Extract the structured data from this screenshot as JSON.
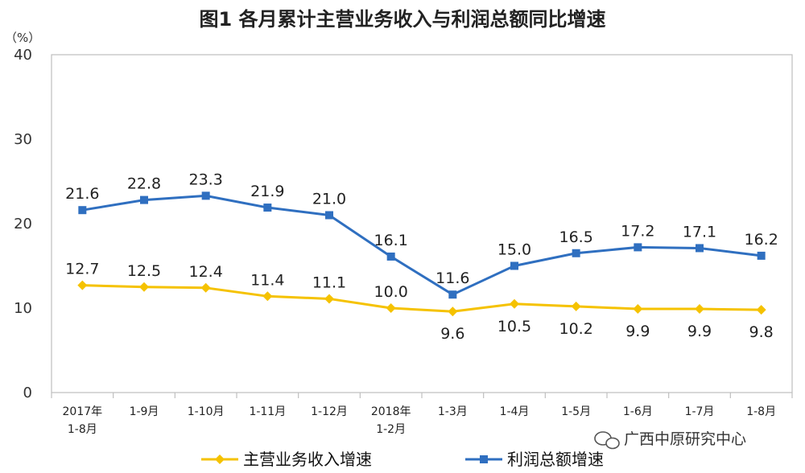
{
  "chart_data": {
    "type": "line",
    "title": "图1  各月累计主营业务收入与利润总额同比增速",
    "ylabel": "（%）",
    "ylim": [
      0,
      40
    ],
    "yticks": [
      0,
      10,
      20,
      30,
      40
    ],
    "grid": false,
    "legend_position": "bottom",
    "categories": [
      [
        "2017年",
        "1-8月"
      ],
      [
        "1-9月"
      ],
      [
        "1-10月"
      ],
      [
        "1-11月"
      ],
      [
        "1-12月"
      ],
      [
        "2018年",
        "1-2月"
      ],
      [
        "1-3月"
      ],
      [
        "1-4月"
      ],
      [
        "1-5月"
      ],
      [
        "1-6月"
      ],
      [
        "1-7月"
      ],
      [
        "1-8月"
      ]
    ],
    "series": [
      {
        "name": "主营业务收入增速",
        "color": "#f5c200",
        "marker": "diamond",
        "values": [
          12.7,
          12.5,
          12.4,
          11.4,
          11.1,
          10.0,
          9.6,
          10.5,
          10.2,
          9.9,
          9.9,
          9.8
        ],
        "labels": [
          "12.7",
          "12.5",
          "12.4",
          "11.4",
          "11.1",
          "10.0",
          "9.6",
          "10.5",
          "10.2",
          "9.9",
          "9.9",
          "9.8"
        ]
      },
      {
        "name": "利润总额增速",
        "color": "#2f6fc0",
        "marker": "square",
        "values": [
          21.6,
          22.8,
          23.3,
          21.9,
          21.0,
          16.1,
          11.6,
          15.0,
          16.5,
          17.2,
          17.1,
          16.2
        ],
        "labels": [
          "21.6",
          "22.8",
          "23.3",
          "21.9",
          "21.0",
          "16.1",
          "11.6",
          "15.0",
          "16.5",
          "17.2",
          "17.1",
          "16.2"
        ]
      }
    ]
  },
  "watermark": {
    "icon": "wechat-icon",
    "text": "广西中原研究中心"
  }
}
